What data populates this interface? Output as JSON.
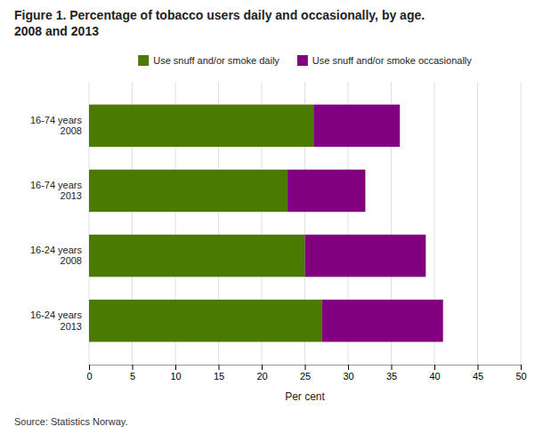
{
  "chart_data": {
    "type": "bar",
    "orientation": "horizontal",
    "stacked": true,
    "title": "Figure 1. Percentage of tobacco users daily and occasionally, by age.",
    "subtitle": "2008 and 2013",
    "categories": [
      "16-74 years\n2008",
      "16-74 years\n2013",
      "16-24 years\n2008",
      "16-24 years\n2013"
    ],
    "series": [
      {
        "name": "Use snuff and/or smoke daily",
        "color": "#4a7a00",
        "values": [
          26,
          23,
          25,
          27
        ]
      },
      {
        "name": "Use snuff and/or smoke occasionally",
        "color": "#800080",
        "values": [
          10,
          9,
          14,
          14
        ]
      }
    ],
    "xlabel": "Per cent",
    "xlim": [
      0,
      50
    ],
    "xticks": [
      0,
      5,
      10,
      15,
      20,
      25,
      30,
      35,
      40,
      45,
      50
    ],
    "grid": true,
    "legend": "top",
    "annotations": [
      "Source: Statistics Norway."
    ]
  }
}
